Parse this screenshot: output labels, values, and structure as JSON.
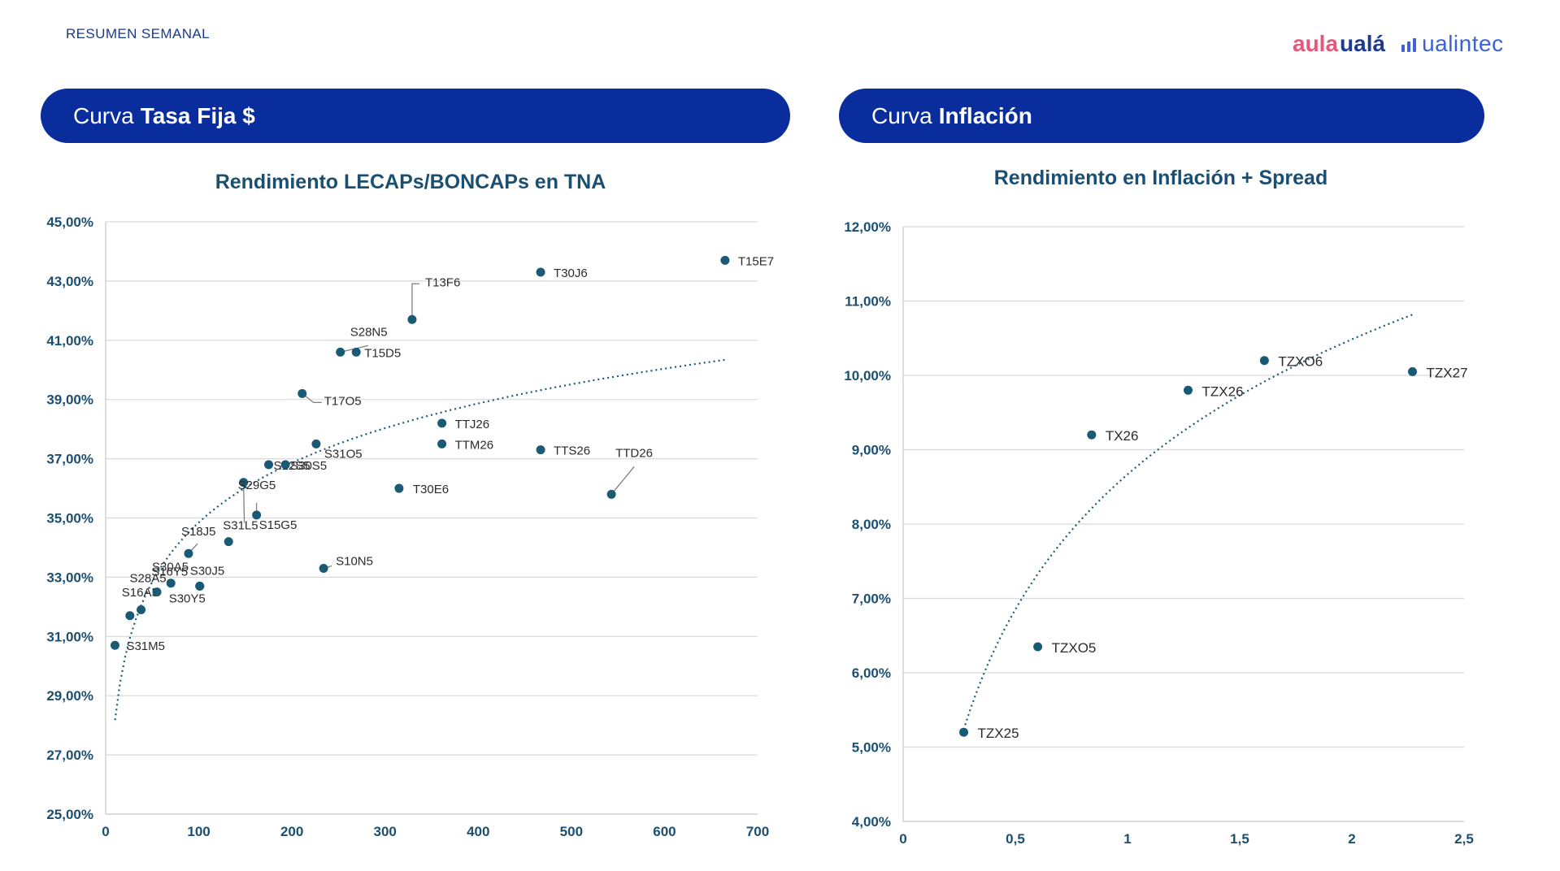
{
  "header": {
    "section_label": "RESUMEN SEMANAL",
    "logo_aula": "aula",
    "logo_uala": "ualá",
    "logo_ualintec": "ualintec"
  },
  "banners": {
    "left": {
      "prefix": "Curva",
      "bold": "Tasa Fija $"
    },
    "right": {
      "prefix": "Curva",
      "bold": "Inflación"
    }
  },
  "chart_data": [
    {
      "type": "scatter",
      "title": "Rendimiento LECAPs/BONCAPs en TNA",
      "xlabel": "",
      "ylabel": "",
      "xlim": [
        0,
        700
      ],
      "ylim": [
        25,
        45
      ],
      "x_ticks": [
        "0",
        "100",
        "200",
        "300",
        "400",
        "500",
        "600",
        "700"
      ],
      "y_ticks": [
        "25,00%",
        "27,00%",
        "29,00%",
        "31,00%",
        "33,00%",
        "35,00%",
        "37,00%",
        "39,00%",
        "41,00%",
        "43,00%",
        "45,00%"
      ],
      "grid": "horizontal",
      "trendline": {
        "kind": "logarithmic",
        "x_start": 10,
        "x_end": 665
      },
      "points": [
        {
          "label": "S31M5",
          "x": 10,
          "y": 30.7
        },
        {
          "label": "S16A5",
          "x": 26,
          "y": 31.7
        },
        {
          "label": "S28A5",
          "x": 38,
          "y": 31.9
        },
        {
          "label": "S30A5",
          "x": 55,
          "y": 32.5
        },
        {
          "label": "S16Y5",
          "x": 70,
          "y": 32.8
        },
        {
          "label": "S30Y5",
          "x": 101,
          "y": 32.7
        },
        {
          "label": "S30J5",
          "x": 101,
          "y": 32.7
        },
        {
          "label": "S18J5",
          "x": 89,
          "y": 33.8
        },
        {
          "label": "S31L5",
          "x": 132,
          "y": 34.2
        },
        {
          "label": "S15G5",
          "x": 162,
          "y": 35.1
        },
        {
          "label": "S29G5",
          "x": 148,
          "y": 36.2
        },
        {
          "label": "S12S5",
          "x": 175,
          "y": 36.8
        },
        {
          "label": "S30S5",
          "x": 193,
          "y": 36.8
        },
        {
          "label": "S31O5",
          "x": 226,
          "y": 37.5
        },
        {
          "label": "T17O5",
          "x": 211,
          "y": 39.2
        },
        {
          "label": "S10N5",
          "x": 234,
          "y": 33.3
        },
        {
          "label": "S28N5",
          "x": 252,
          "y": 40.6
        },
        {
          "label": "T15D5",
          "x": 269,
          "y": 40.6
        },
        {
          "label": "T30E6",
          "x": 315,
          "y": 36.0
        },
        {
          "label": "T13F6",
          "x": 329,
          "y": 41.7
        },
        {
          "label": "TTM26",
          "x": 361,
          "y": 37.5
        },
        {
          "label": "TTJ26",
          "x": 361,
          "y": 38.2
        },
        {
          "label": "T30J6",
          "x": 467,
          "y": 43.3
        },
        {
          "label": "TTS26",
          "x": 467,
          "y": 37.3
        },
        {
          "label": "TTD26",
          "x": 543,
          "y": 35.8
        },
        {
          "label": "T15E7",
          "x": 665,
          "y": 43.7
        }
      ]
    },
    {
      "type": "scatter",
      "title": "Rendimiento en Inflación + Spread",
      "xlabel": "",
      "ylabel": "",
      "xlim": [
        0,
        2.5
      ],
      "ylim": [
        4,
        12
      ],
      "x_ticks": [
        "0",
        "0,5",
        "1",
        "1,5",
        "2",
        "2,5"
      ],
      "y_ticks": [
        "4,00%",
        "5,00%",
        "6,00%",
        "7,00%",
        "8,00%",
        "9,00%",
        "10,00%",
        "11,00%",
        "12,00%"
      ],
      "grid": "horizontal",
      "trendline": {
        "kind": "logarithmic",
        "x_start": 0.27,
        "x_end": 2.27
      },
      "points": [
        {
          "label": "TZX25",
          "x": 0.27,
          "y": 5.2
        },
        {
          "label": "TZXO5",
          "x": 0.6,
          "y": 6.35
        },
        {
          "label": "TX26",
          "x": 0.84,
          "y": 9.2
        },
        {
          "label": "TZX26",
          "x": 1.27,
          "y": 9.8
        },
        {
          "label": "TZXO6",
          "x": 1.61,
          "y": 10.2
        },
        {
          "label": "TZX27",
          "x": 2.27,
          "y": 10.05
        }
      ]
    }
  ],
  "colors": {
    "banner": "#0a2d9e",
    "point": "#1b5a75",
    "axis_text": "#1b4f72",
    "aula_pink": "#e8557a",
    "uala_navy": "#1f3b8f",
    "ualintec_blue": "#3b62d9"
  }
}
